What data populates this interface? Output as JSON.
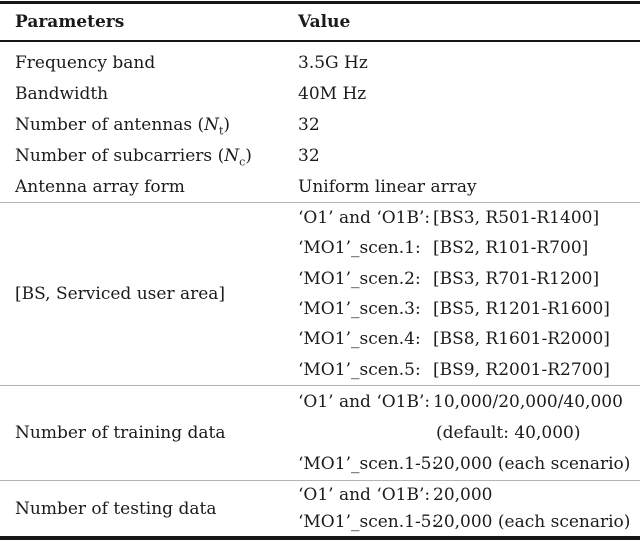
{
  "colors": {
    "rule_strong": "#161616",
    "rule_light": "#b4b4b4",
    "text": "#1b1b1b",
    "background": "#ffffff"
  },
  "table": {
    "header": {
      "parameters": "Parameters",
      "value": "Value"
    },
    "simple_rows": [
      {
        "param": "Frequency band",
        "value": "3.5G Hz"
      },
      {
        "param": "Bandwidth",
        "value": "40M Hz"
      },
      {
        "param": "Number of antennas (",
        "param_sym": "N",
        "param_sub": "t",
        "param_close": ")",
        "value": "32"
      },
      {
        "param": "Number of subcarriers (",
        "param_sym": "N",
        "param_sub": "c",
        "param_close": ")",
        "value": "32"
      },
      {
        "param": "Antenna array form",
        "value": "Uniform linear array"
      }
    ],
    "bs_section": {
      "param": "[BS, Serviced user area]",
      "rows": [
        {
          "label": "‘O1’ and ‘O1B’:",
          "value": "[BS3, R501-R1400]"
        },
        {
          "label": "‘MO1’_scen.1:",
          "value": "[BS2, R101-R700]"
        },
        {
          "label": "‘MO1’_scen.2:",
          "value": "[BS3, R701-R1200]"
        },
        {
          "label": "‘MO1’_scen.3:",
          "value": "[BS5, R1201-R1600]"
        },
        {
          "label": "‘MO1’_scen.4:",
          "value": "[BS8, R1601-R2000]"
        },
        {
          "label": "‘MO1’_scen.5:",
          "value": "[BS9, R2001-R2700]"
        }
      ]
    },
    "training_section": {
      "param": "Number of training data",
      "rows": [
        {
          "label": "‘O1’ and ‘O1B’:",
          "value": "10,000/20,000/40,000"
        },
        {
          "label": "",
          "value": "(default: 40,000)"
        },
        {
          "label": "‘MO1’_scen.1-5:",
          "value": "20,000 (each scenario)"
        }
      ]
    },
    "testing_section": {
      "param": "Number of testing data",
      "rows": [
        {
          "label": "‘O1’ and ‘O1B’:",
          "value": "20,000"
        },
        {
          "label": "‘MO1’_scen.1-5:",
          "value": "20,000 (each scenario)"
        }
      ]
    }
  }
}
